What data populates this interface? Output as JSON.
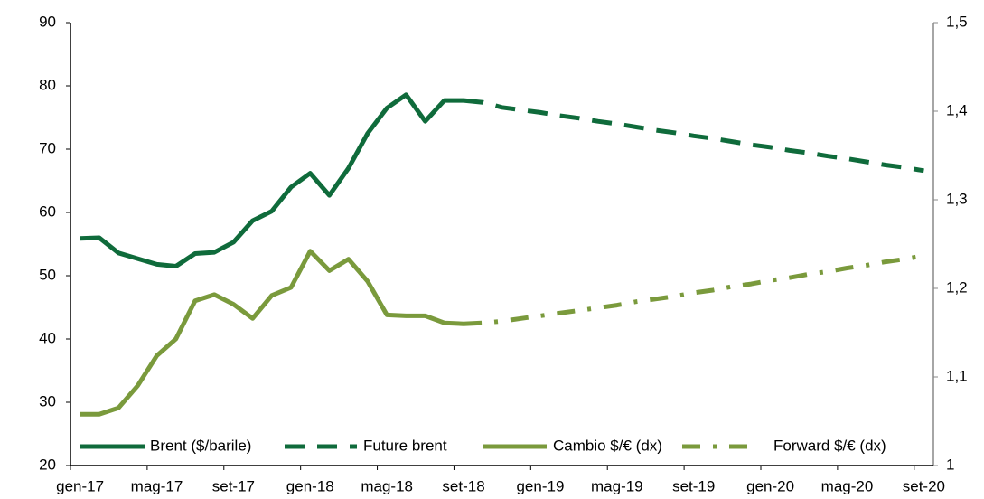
{
  "chart_data": {
    "type": "line",
    "categories": [
      "gen-17",
      null,
      null,
      null,
      "mag-17",
      null,
      null,
      null,
      "set-17",
      null,
      null,
      null,
      "gen-18",
      null,
      null,
      null,
      "mag-18",
      null,
      null,
      null,
      "set-18",
      null,
      null,
      null,
      "gen-19",
      null,
      null,
      null,
      "mag-19",
      null,
      null,
      null,
      "set-19",
      null,
      null,
      null,
      "gen-20",
      null,
      null,
      null,
      "mag-20",
      null,
      null,
      null,
      "set-20"
    ],
    "series": [
      {
        "name": "Brent ($/barile)",
        "color": "#0f6b3b",
        "dash": "solid",
        "values": [
          55.9,
          56.0,
          53.6,
          52.7,
          51.8,
          51.5,
          53.5,
          53.7,
          55.3,
          58.7,
          60.2,
          64.0,
          66.2,
          62.7,
          67.0,
          72.5,
          76.5,
          78.6,
          74.4,
          77.7,
          77.7,
          null,
          null,
          null,
          null,
          null,
          null,
          null,
          null,
          null,
          null,
          null,
          null,
          null,
          null,
          null,
          null,
          null,
          null,
          null,
          null,
          null,
          null,
          null,
          null
        ]
      },
      {
        "name": "Future brent",
        "color": "#0f6b3b",
        "dash": "dashed",
        "values": [
          null,
          null,
          null,
          null,
          null,
          null,
          null,
          null,
          null,
          null,
          null,
          null,
          null,
          null,
          null,
          null,
          null,
          null,
          null,
          null,
          77.7,
          77.4,
          76.6,
          76.2,
          75.8,
          75.3,
          74.9,
          74.4,
          74.0,
          73.5,
          73.0,
          72.6,
          72.1,
          71.7,
          71.2,
          70.7,
          70.3,
          69.8,
          69.4,
          68.9,
          68.5,
          68.0,
          67.5,
          67.1,
          66.6
        ]
      },
      {
        "name": "Cambio $/€ (dx)",
        "color": "#7a9a3c",
        "dash": "solid",
        "axis": "y2",
        "values": [
          1.058,
          1.058,
          1.065,
          1.09,
          1.124,
          1.143,
          1.186,
          1.193,
          1.182,
          1.166,
          1.192,
          1.201,
          1.242,
          1.22,
          1.233,
          1.208,
          1.17,
          1.169,
          1.169,
          1.161,
          1.16,
          null,
          null,
          null,
          null,
          null,
          null,
          null,
          null,
          null,
          null,
          null,
          null,
          null,
          null,
          null,
          null,
          null,
          null,
          null,
          null,
          null,
          null,
          null,
          null
        ]
      },
      {
        "name": "Forward $/€ (dx)",
        "color": "#7a9a3c",
        "dash": "dashdot",
        "axis": "y2",
        "values": [
          null,
          null,
          null,
          null,
          null,
          null,
          null,
          null,
          null,
          null,
          null,
          null,
          null,
          null,
          null,
          null,
          null,
          null,
          null,
          null,
          1.16,
          1.161,
          1.163,
          1.166,
          1.169,
          1.172,
          1.175,
          1.178,
          1.181,
          1.185,
          1.188,
          1.191,
          1.195,
          1.198,
          1.202,
          1.205,
          1.209,
          1.212,
          1.216,
          1.219,
          1.223,
          1.226,
          1.23,
          1.233,
          1.237
        ]
      }
    ],
    "ylim": [
      20,
      90
    ],
    "yticks": [
      20,
      30,
      40,
      50,
      60,
      70,
      80,
      90
    ],
    "y2lim": [
      1,
      1.5
    ],
    "y2ticks": [
      1,
      {
        "value": 1.1,
        "label": "1,1"
      },
      {
        "value": 1.2,
        "label": "1,2"
      },
      {
        "value": 1.3,
        "label": "1,3"
      },
      {
        "value": 1.4,
        "label": "1,4"
      },
      {
        "value": 1.5,
        "label": "1,5"
      }
    ],
    "grid": false,
    "legend": "bottom"
  }
}
